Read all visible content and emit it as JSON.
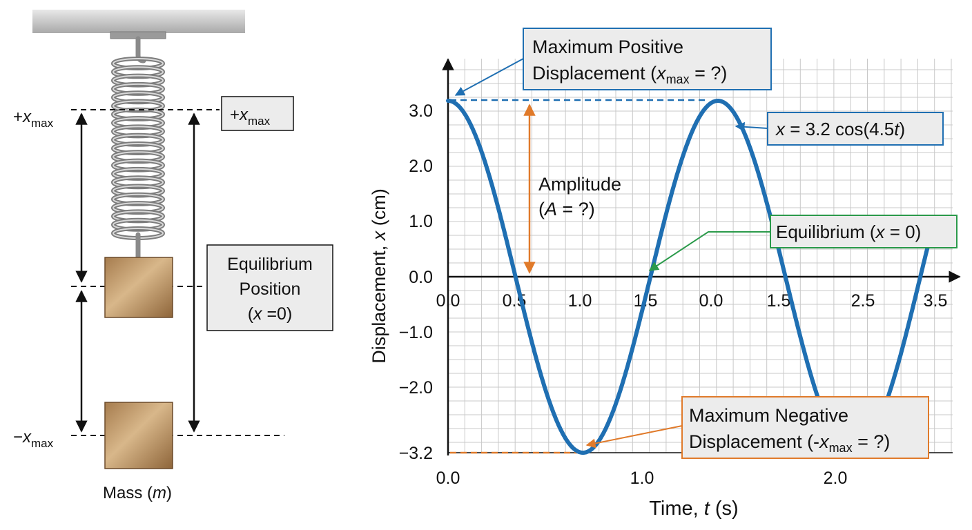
{
  "spring_diagram": {
    "plus_xmax_left": {
      "sign": "+",
      "var": "x",
      "sub": "max"
    },
    "plus_xmax_box": {
      "sign": "+",
      "var": "x",
      "sub": "max"
    },
    "minus_xmax_left": {
      "sign": "−",
      "var": "x",
      "sub": "max"
    },
    "equilibrium_box": {
      "line1": "Equilibrium",
      "line2": "Position",
      "open": "(",
      "var": "x",
      "close": " =0)"
    },
    "mass_label": {
      "text": "Mass (",
      "var": "m",
      "close": ")"
    }
  },
  "graph": {
    "y_axis_label": {
      "text": "Displacement, ",
      "var": "x",
      "unit": " (cm)"
    },
    "x_axis_label": {
      "text": "Time, ",
      "var": "t",
      "unit": " (s)"
    },
    "y_ticks": [
      "3.0",
      "2.0",
      "1.0",
      "0.0",
      "−1.0",
      "−2.0",
      "−3.2"
    ],
    "x_ticks_top": [
      "0.0",
      "0.5",
      "1.0",
      "1.5",
      "0.0",
      "1.5",
      "2.5",
      "3.5"
    ],
    "x_ticks_bottom": [
      "0.0",
      "1.0",
      "2.0"
    ],
    "max_pos_box": {
      "line1": "Maximum Positive",
      "line2_pre": "Displacement (",
      "var": "x",
      "sub": "max",
      "line2_post": " = ?)"
    },
    "equation_box": {
      "pre": "x",
      "mid": " = 3.2 cos(4.5",
      "var": "t",
      "post": ")"
    },
    "amplitude": {
      "line1": "Amplitude",
      "open": "(",
      "var": "A",
      "post": " = ?)"
    },
    "equilibrium_box": {
      "pre": "Equilibrium (",
      "var": "x",
      "post": " = 0)"
    },
    "max_neg_box": {
      "line1": "Maximum Negative",
      "line2_pre": "Displacement (-",
      "var": "x",
      "sub": "max",
      "line2_post": " = ?)"
    }
  },
  "chart_data": {
    "type": "line",
    "equation": "x = 3.2 cos(4.5t)",
    "amplitude": 3.2,
    "angular_frequency": 4.5,
    "xlabel": "Time, t (s)",
    "ylabel": "Displacement, x (cm)",
    "ylim": [
      -3.2,
      3.2
    ],
    "xlim": [
      0,
      3.5
    ],
    "grid": true
  },
  "colors": {
    "curve": "#1f6fb2",
    "amplitude": "#e07a2a",
    "equilibrium": "#2a9a4a",
    "box_fill": "#ececec",
    "mass": "#b48a5a"
  }
}
